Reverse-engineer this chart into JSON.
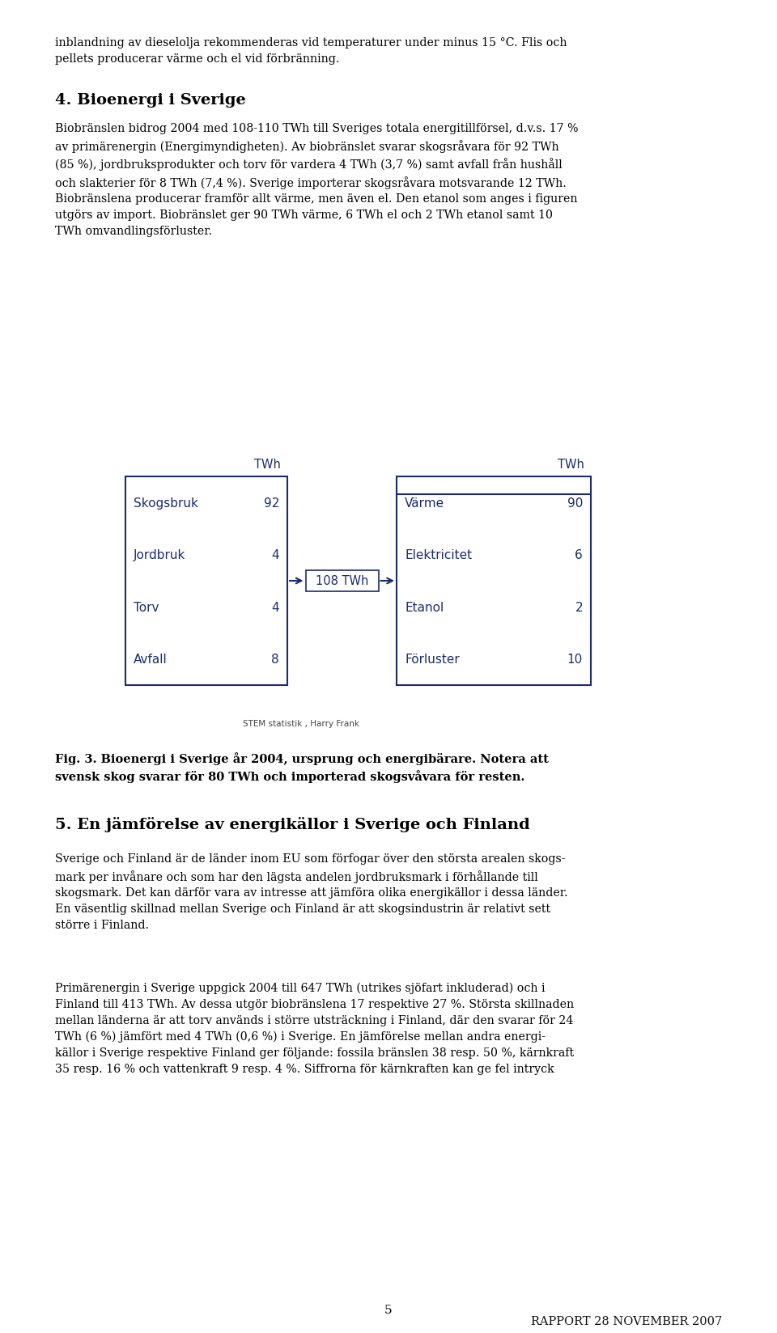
{
  "page_bg": "#ffffff",
  "dark_blue": "#1c2b6b",
  "body_color": "#000000",
  "header_text": "Rapport 28 november 2007",
  "header_font_size": 11.5,
  "body_font_size": 10.5,
  "small_font_size": 7.5,
  "section_heading": "4. Bioenergi i Sverige",
  "section_heading_size": 14,
  "intro_text": "inblandning av dieselolja rekommenderas vid temperaturer under minus 15 °C. Flis och\npellets producerar värme och el vid förbränning.",
  "para1_line1": "Biobränslen bidrog 2004 med 108-110 TWh till Sveriges totala energitillförsel, d.v.s. 17 %",
  "para1_line2": "av primärenergin (Energimyndigheten). Av biobränslet svarar skovsråvara för 92 TWh",
  "para1_line3": "(85 %), jordbruksprodukter och torv för vardera 4 TWh (3,7 %) samt avfall från hushåll",
  "para1_line4": "och slakterier för 8 TWh (7,4 %). Sverige importerar skogsvåvara motsvarande 12 TWh.",
  "para1_line5": "Biobränslena producerar framför allt värme, men även el. Den etanol som anges i figuren",
  "para1_line6": "utgörs av import. Biobränslet ger 90 TWh värme, 6 TWh el och 2 TWh etanol samt 10",
  "para1_line7": "TWh omvandlingsförluster.",
  "para1": "Biobränslen bidrog 2004 med 108-110 TWh till Sveriges totala energitillförsel, d.v.s. 17 %\nav primärenergin (Energimyndigheten). Av biobränslet svarar skogsvåvara för 92 TWh\n(85 %), jordbruksprodukter och torv för vardera 4 TWh (3,7 %) samt avfall från hushåll\noch slakterier för 8 TWh (7,4 %). Sverige importerar skogsvåvara motsvarande 12 TWh.\nBiobränslena producerar framför allt värme, men även el. Den etanol som anges i figuren\nutgörs av import. Biobränslet ger 90 TWh värme, 6 TWh el och 2 TWh etanol samt 10\nTWh omvandlingsförluster.",
  "left_box_header": "TWh",
  "left_box_rows": [
    [
      "Skogsbruk",
      "92"
    ],
    [
      "Jordbruk",
      "4"
    ],
    [
      "Torv",
      "4"
    ],
    [
      "Avfall",
      "8"
    ]
  ],
  "arrow_label": "108 TWh",
  "right_box_header": "TWh",
  "right_box_rows": [
    [
      "Värme",
      "90"
    ],
    [
      "Elektricitet",
      "6"
    ],
    [
      "Etanol",
      "2"
    ],
    [
      "Förluster",
      "10"
    ]
  ],
  "source_text": "STEM statistik , Harry Frank",
  "fig_caption": "Fig. 3. Bioenergi i Sverige år 2004, ursprung och energibärare. Notera att\nsvensk skog svarar för 80 TWh och importerad skogsvåvara för resten.",
  "section2_heading": "5. En jämförelse av energikällor i Sverige och Finland",
  "section2_heading_size": 14,
  "para2": "Sverige och Finland är de länder inom EU som förfogar över den största arealen skogs-\nmark per invånare och som har den lägsta andelen jordbruksmark i förhållande till\nskogsmark. Det kan därför vara av intresse att jämföra olika energikällor i dessa länder.\nEn väsentlig skillnad mellan Sverige och Finland är att skogsindustrin är relativt sett\nstörre i Finland.",
  "para3": "Primärenergin i Sverige uppgick 2004 till 647 TWh (utrikes sjöfart inkluderad) och i\nFinland till 413 TWh. Av dessa utgör biobränslena 17 respektive 27 %. Största skillnaden\nmellan länderna är att torv används i större utssträckning i Finland, där den svarar för 24\nTWh (6 %) jämfört med 4 TWh (0,6 %) i Sverige. En jämförelse mellan andra energi-\nkällor i Sverige respektive Finland ger följande: fossila bränslen 38 resp. 50 %, kärnkraft\n35 resp. 16 % och vattenkraft 9 resp. 4 %. Siffrorna för kärnkraften kan ge fel intryck",
  "page_number": "5"
}
